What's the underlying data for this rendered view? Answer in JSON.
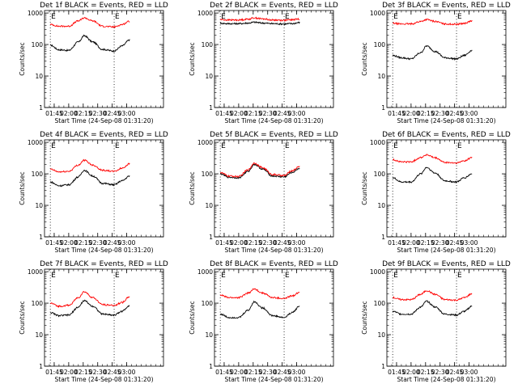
{
  "chart_data": [
    {
      "type": "line",
      "title": "Det 1f BLACK = Events, RED = LLD",
      "xlabel": "Start Time (24-Sep-08 01:31:20)",
      "ylabel": "Counts/sec",
      "yscale": "log",
      "ylim": [
        1,
        1200
      ],
      "xlim": [
        95,
        218
      ],
      "xticks": [
        {
          "v": 105,
          "l": "01:45"
        },
        {
          "v": 120,
          "l": "02:00"
        },
        {
          "v": 135,
          "l": "02:15"
        },
        {
          "v": 150,
          "l": "02:30"
        },
        {
          "v": 165,
          "l": "02:45"
        },
        {
          "v": 180,
          "l": "03:00"
        }
      ],
      "yticks": [
        {
          "v": 1,
          "l": "1"
        },
        {
          "v": 10,
          "l": "10"
        },
        {
          "v": 100,
          "l": "100"
        },
        {
          "v": 1000,
          "l": "1000"
        }
      ],
      "markers": [
        {
          "x": 101,
          "label": "E"
        },
        {
          "x": 167,
          "label": "E"
        }
      ],
      "series": [
        {
          "name": "Events",
          "color": "#000000",
          "x": [
            101,
            110,
            120,
            130,
            136,
            145,
            155,
            167,
            175,
            183
          ],
          "y": [
            95,
            68,
            65,
            120,
            190,
            120,
            70,
            62,
            90,
            140
          ]
        },
        {
          "name": "LLD",
          "color": "#ff0000",
          "x": [
            101,
            110,
            120,
            130,
            136,
            145,
            155,
            167,
            175,
            183
          ],
          "y": [
            430,
            380,
            380,
            560,
            700,
            560,
            380,
            360,
            430,
            550
          ]
        }
      ]
    },
    {
      "type": "line",
      "title": "Det 2f BLACK = Events, RED = LLD",
      "xlabel": "Start Time (24-Sep-08 01:31:20)",
      "ylabel": "Counts/sec",
      "yscale": "log",
      "ylim": [
        1,
        1200
      ],
      "xlim": [
        95,
        218
      ],
      "xticks": [
        {
          "v": 105,
          "l": "01:45"
        },
        {
          "v": 120,
          "l": "02:00"
        },
        {
          "v": 135,
          "l": "02:15"
        },
        {
          "v": 150,
          "l": "02:30"
        },
        {
          "v": 165,
          "l": "02:45"
        },
        {
          "v": 180,
          "l": "03:00"
        }
      ],
      "yticks": [
        {
          "v": 1,
          "l": "1"
        },
        {
          "v": 10,
          "l": "10"
        },
        {
          "v": 100,
          "l": "100"
        },
        {
          "v": 1000,
          "l": "1000"
        }
      ],
      "markers": [
        {
          "x": 101,
          "label": "E"
        },
        {
          "x": 167,
          "label": "E"
        }
      ],
      "series": [
        {
          "name": "Events",
          "color": "#000000",
          "x": [
            101,
            110,
            120,
            130,
            136,
            145,
            155,
            167,
            175,
            183
          ],
          "y": [
            470,
            460,
            460,
            480,
            510,
            480,
            460,
            450,
            460,
            500
          ]
        },
        {
          "name": "LLD",
          "color": "#ff0000",
          "x": [
            101,
            110,
            120,
            130,
            136,
            145,
            155,
            167,
            175,
            183
          ],
          "y": [
            620,
            600,
            600,
            640,
            700,
            650,
            600,
            590,
            610,
            650
          ]
        }
      ]
    },
    {
      "type": "line",
      "title": "Det 3f BLACK = Events, RED = LLD",
      "xlabel": "Start Time (24-Sep-08 01:31:20)",
      "ylabel": "Counts/sec",
      "yscale": "log",
      "ylim": [
        1,
        1200
      ],
      "xlim": [
        95,
        218
      ],
      "xticks": [
        {
          "v": 105,
          "l": "01:45"
        },
        {
          "v": 120,
          "l": "02:00"
        },
        {
          "v": 135,
          "l": "02:15"
        },
        {
          "v": 150,
          "l": "02:30"
        },
        {
          "v": 165,
          "l": "02:45"
        },
        {
          "v": 180,
          "l": "03:00"
        }
      ],
      "yticks": [
        {
          "v": 1,
          "l": "1"
        },
        {
          "v": 10,
          "l": "10"
        },
        {
          "v": 100,
          "l": "100"
        },
        {
          "v": 1000,
          "l": "1000"
        }
      ],
      "markers": [
        {
          "x": 101,
          "label": "E"
        },
        {
          "x": 167,
          "label": "E"
        }
      ],
      "series": [
        {
          "name": "Events",
          "color": "#000000",
          "x": [
            101,
            110,
            120,
            130,
            136,
            145,
            155,
            167,
            175,
            183
          ],
          "y": [
            45,
            38,
            35,
            55,
            90,
            60,
            38,
            35,
            45,
            65
          ]
        },
        {
          "name": "LLD",
          "color": "#ff0000",
          "x": [
            101,
            110,
            120,
            130,
            136,
            145,
            155,
            167,
            175,
            183
          ],
          "y": [
            470,
            450,
            450,
            540,
            620,
            540,
            450,
            440,
            470,
            560
          ]
        }
      ]
    },
    {
      "type": "line",
      "title": "Det 4f BLACK = Events, RED = LLD",
      "xlabel": "Start Time (24-Sep-08 01:31:20)",
      "ylabel": "Counts/sec",
      "yscale": "log",
      "ylim": [
        1,
        1200
      ],
      "xlim": [
        95,
        218
      ],
      "xticks": [
        {
          "v": 105,
          "l": "01:45"
        },
        {
          "v": 120,
          "l": "02:00"
        },
        {
          "v": 135,
          "l": "02:15"
        },
        {
          "v": 150,
          "l": "02:30"
        },
        {
          "v": 165,
          "l": "02:45"
        },
        {
          "v": 180,
          "l": "03:00"
        }
      ],
      "yticks": [
        {
          "v": 1,
          "l": "1"
        },
        {
          "v": 10,
          "l": "10"
        },
        {
          "v": 100,
          "l": "100"
        },
        {
          "v": 1000,
          "l": "1000"
        }
      ],
      "markers": [
        {
          "x": 101,
          "label": "E"
        },
        {
          "x": 167,
          "label": "E"
        }
      ],
      "series": [
        {
          "name": "Events",
          "color": "#000000",
          "x": [
            101,
            110,
            120,
            130,
            136,
            145,
            155,
            167,
            175,
            183
          ],
          "y": [
            55,
            42,
            45,
            80,
            130,
            85,
            50,
            45,
            60,
            85
          ]
        },
        {
          "name": "LLD",
          "color": "#ff0000",
          "x": [
            101,
            110,
            120,
            130,
            136,
            145,
            155,
            167,
            175,
            183
          ],
          "y": [
            140,
            115,
            120,
            190,
            270,
            190,
            130,
            120,
            150,
            210
          ]
        }
      ]
    },
    {
      "type": "line",
      "title": "Det 5f BLACK = Events, RED = LLD",
      "xlabel": "Start Time (24-Sep-08 01:31:20)",
      "ylabel": "Counts/sec",
      "yscale": "log",
      "ylim": [
        1,
        1200
      ],
      "xlim": [
        95,
        218
      ],
      "xticks": [
        {
          "v": 105,
          "l": "01:45"
        },
        {
          "v": 120,
          "l": "02:00"
        },
        {
          "v": 135,
          "l": "02:15"
        },
        {
          "v": 150,
          "l": "02:30"
        },
        {
          "v": 165,
          "l": "02:45"
        },
        {
          "v": 180,
          "l": "03:00"
        }
      ],
      "yticks": [
        {
          "v": 1,
          "l": "1"
        },
        {
          "v": 10,
          "l": "10"
        },
        {
          "v": 100,
          "l": "100"
        },
        {
          "v": 1000,
          "l": "1000"
        }
      ],
      "markers": [
        {
          "x": 101,
          "label": "E"
        },
        {
          "x": 167,
          "label": "E"
        }
      ],
      "series": [
        {
          "name": "Events",
          "color": "#000000",
          "x": [
            101,
            110,
            120,
            130,
            136,
            145,
            155,
            167,
            175,
            183
          ],
          "y": [
            100,
            78,
            75,
            120,
            200,
            140,
            85,
            80,
            110,
            150
          ]
        },
        {
          "name": "LLD",
          "color": "#ff0000",
          "x": [
            101,
            110,
            120,
            130,
            136,
            145,
            155,
            167,
            175,
            183
          ],
          "y": [
            110,
            85,
            82,
            135,
            220,
            155,
            95,
            88,
            125,
            170
          ]
        }
      ]
    },
    {
      "type": "line",
      "title": "Det 6f BLACK = Events, RED = LLD",
      "xlabel": "Start Time (24-Sep-08 01:31:20)",
      "ylabel": "Counts/sec",
      "yscale": "log",
      "ylim": [
        1,
        1200
      ],
      "xlim": [
        95,
        218
      ],
      "xticks": [
        {
          "v": 105,
          "l": "01:45"
        },
        {
          "v": 120,
          "l": "02:00"
        },
        {
          "v": 135,
          "l": "02:15"
        },
        {
          "v": 150,
          "l": "02:30"
        },
        {
          "v": 165,
          "l": "02:45"
        },
        {
          "v": 180,
          "l": "03:00"
        }
      ],
      "yticks": [
        {
          "v": 1,
          "l": "1"
        },
        {
          "v": 10,
          "l": "10"
        },
        {
          "v": 100,
          "l": "100"
        },
        {
          "v": 1000,
          "l": "1000"
        }
      ],
      "markers": [
        {
          "x": 101,
          "label": "E"
        },
        {
          "x": 167,
          "label": "E"
        }
      ],
      "series": [
        {
          "name": "Events",
          "color": "#000000",
          "x": [
            101,
            110,
            120,
            130,
            136,
            145,
            155,
            167,
            175,
            183
          ],
          "y": [
            75,
            55,
            55,
            100,
            160,
            105,
            60,
            55,
            75,
            100
          ]
        },
        {
          "name": "LLD",
          "color": "#ff0000",
          "x": [
            101,
            110,
            120,
            130,
            136,
            145,
            155,
            167,
            175,
            183
          ],
          "y": [
            280,
            240,
            240,
            330,
            400,
            320,
            230,
            220,
            260,
            330
          ]
        }
      ]
    },
    {
      "type": "line",
      "title": "Det 7f BLACK = Events, RED = LLD",
      "xlabel": "Start Time (24-Sep-08 01:31:20)",
      "ylabel": "Counts/sec",
      "yscale": "log",
      "ylim": [
        1,
        1200
      ],
      "xlim": [
        95,
        218
      ],
      "xticks": [
        {
          "v": 105,
          "l": "01:45"
        },
        {
          "v": 120,
          "l": "02:00"
        },
        {
          "v": 135,
          "l": "02:15"
        },
        {
          "v": 150,
          "l": "02:30"
        },
        {
          "v": 165,
          "l": "02:45"
        },
        {
          "v": 180,
          "l": "03:00"
        }
      ],
      "yticks": [
        {
          "v": 1,
          "l": "1"
        },
        {
          "v": 10,
          "l": "10"
        },
        {
          "v": 100,
          "l": "100"
        },
        {
          "v": 1000,
          "l": "1000"
        }
      ],
      "markers": [
        {
          "x": 101,
          "label": "E"
        },
        {
          "x": 167,
          "label": "E"
        }
      ],
      "series": [
        {
          "name": "Events",
          "color": "#000000",
          "x": [
            101,
            110,
            120,
            130,
            136,
            145,
            155,
            167,
            175,
            183
          ],
          "y": [
            50,
            40,
            42,
            75,
            120,
            80,
            45,
            42,
            55,
            85
          ]
        },
        {
          "name": "LLD",
          "color": "#ff0000",
          "x": [
            101,
            110,
            120,
            130,
            136,
            145,
            155,
            167,
            175,
            183
          ],
          "y": [
            100,
            80,
            85,
            150,
            230,
            150,
            90,
            85,
            105,
            160
          ]
        }
      ]
    },
    {
      "type": "line",
      "title": "Det 8f BLACK = Events, RED = LLD",
      "xlabel": "Start Time (24-Sep-08 01:31:20)",
      "ylabel": "Counts/sec",
      "yscale": "log",
      "ylim": [
        1,
        1200
      ],
      "xlim": [
        95,
        218
      ],
      "xticks": [
        {
          "v": 105,
          "l": "01:45"
        },
        {
          "v": 120,
          "l": "02:00"
        },
        {
          "v": 135,
          "l": "02:15"
        },
        {
          "v": 150,
          "l": "02:30"
        },
        {
          "v": 165,
          "l": "02:45"
        },
        {
          "v": 180,
          "l": "03:00"
        }
      ],
      "yticks": [
        {
          "v": 1,
          "l": "1"
        },
        {
          "v": 10,
          "l": "10"
        },
        {
          "v": 100,
          "l": "100"
        },
        {
          "v": 1000,
          "l": "1000"
        }
      ],
      "markers": [
        {
          "x": 101,
          "label": "E"
        },
        {
          "x": 167,
          "label": "E"
        }
      ],
      "series": [
        {
          "name": "Events",
          "color": "#000000",
          "x": [
            101,
            110,
            120,
            130,
            136,
            145,
            155,
            167,
            175,
            183
          ],
          "y": [
            45,
            35,
            35,
            60,
            110,
            70,
            40,
            35,
            50,
            80
          ]
        },
        {
          "name": "LLD",
          "color": "#ff0000",
          "x": [
            101,
            110,
            120,
            130,
            136,
            145,
            155,
            167,
            175,
            183
          ],
          "y": [
            180,
            150,
            150,
            210,
            280,
            210,
            150,
            140,
            170,
            220
          ]
        }
      ]
    },
    {
      "type": "line",
      "title": "Det 9f BLACK = Events, RED = LLD",
      "xlabel": "Start Time (24-Sep-08 01:31:20)",
      "ylabel": "Counts/sec",
      "yscale": "log",
      "ylim": [
        1,
        1200
      ],
      "xlim": [
        95,
        218
      ],
      "xticks": [
        {
          "v": 105,
          "l": "01:45"
        },
        {
          "v": 120,
          "l": "02:00"
        },
        {
          "v": 135,
          "l": "02:15"
        },
        {
          "v": 150,
          "l": "02:30"
        },
        {
          "v": 165,
          "l": "02:45"
        },
        {
          "v": 180,
          "l": "03:00"
        }
      ],
      "yticks": [
        {
          "v": 1,
          "l": "1"
        },
        {
          "v": 10,
          "l": "10"
        },
        {
          "v": 100,
          "l": "100"
        },
        {
          "v": 1000,
          "l": "1000"
        }
      ],
      "markers": [
        {
          "x": 101,
          "label": "E"
        },
        {
          "x": 167,
          "label": "E"
        }
      ],
      "series": [
        {
          "name": "Events",
          "color": "#000000",
          "x": [
            101,
            110,
            120,
            130,
            136,
            145,
            155,
            167,
            175,
            183
          ],
          "y": [
            55,
            45,
            45,
            75,
            115,
            75,
            45,
            42,
            55,
            80
          ]
        },
        {
          "name": "LLD",
          "color": "#ff0000",
          "x": [
            101,
            110,
            120,
            130,
            136,
            145,
            155,
            167,
            175,
            183
          ],
          "y": [
            150,
            130,
            130,
            190,
            250,
            190,
            130,
            125,
            150,
            200
          ]
        }
      ]
    }
  ]
}
